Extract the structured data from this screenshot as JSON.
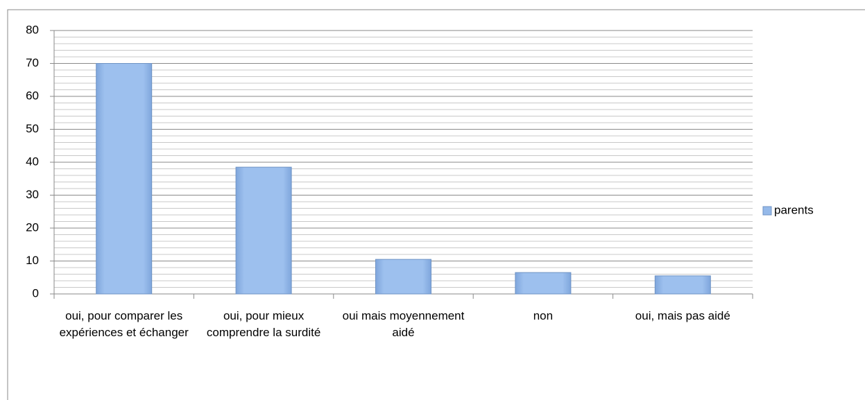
{
  "chart_data": {
    "type": "bar",
    "categories": [
      "oui, pour comparer les expériences et échanger",
      "oui, pour mieux comprendre la surdité",
      "oui mais moyennement aidé",
      "non",
      "oui, mais pas aidé"
    ],
    "series": [
      {
        "name": "parents",
        "color": "#95b9e9",
        "values": [
          70,
          38.5,
          10.5,
          6.5,
          5.5
        ]
      }
    ],
    "ylim": [
      0,
      80
    ],
    "yticks": [
      0,
      10,
      20,
      30,
      40,
      50,
      60,
      70,
      80
    ],
    "minor_yticks": [
      2,
      4,
      6,
      8,
      12,
      14,
      16,
      18,
      22,
      24,
      26,
      28,
      32,
      34,
      36,
      38,
      42,
      44,
      46,
      48,
      52,
      54,
      56,
      58,
      62,
      64,
      66,
      68,
      72,
      74,
      76,
      78
    ],
    "grid": true,
    "legend": "right"
  }
}
